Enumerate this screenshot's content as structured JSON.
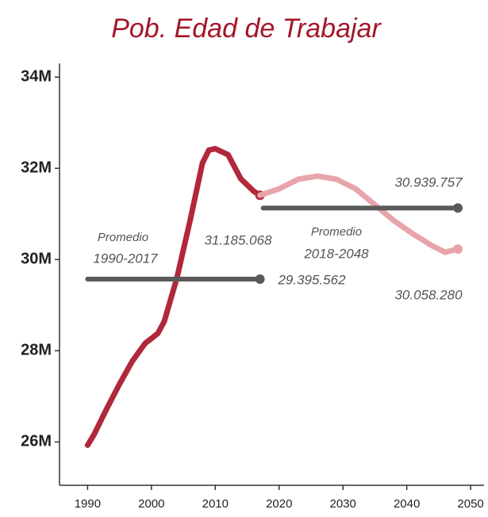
{
  "chart_data": {
    "type": "line",
    "title": "Pob. Edad de Trabajar",
    "xlim": [
      1985.6,
      2052.1
    ],
    "xticks": [
      1990,
      2000,
      2010,
      2020,
      2030,
      2040,
      2050
    ],
    "ylim": [
      25050000,
      34300000
    ],
    "yticks": [
      {
        "value": 26000000,
        "label": "26M"
      },
      {
        "value": 28000000,
        "label": "28M"
      },
      {
        "value": 30000000,
        "label": "30M"
      },
      {
        "value": 32000000,
        "label": "32M"
      },
      {
        "value": 34000000,
        "label": "34M"
      }
    ],
    "series": [
      {
        "color": "#b0283a",
        "x": [
          1990,
          1991,
          1993,
          1995,
          1997,
          1999,
          2001,
          2002,
          2004,
          2006,
          2008,
          2009,
          2010,
          2012,
          2014,
          2016,
          2017
        ],
        "values": [
          25930000,
          26160000,
          26730000,
          27270000,
          27770000,
          28160000,
          28380000,
          28640000,
          29600000,
          30820000,
          32120000,
          32400000,
          32430000,
          32300000,
          31770000,
          31500000,
          31410000
        ]
      },
      {
        "color": "#e8a4ab",
        "x": [
          2017,
          2020,
          2023,
          2026,
          2029,
          2032,
          2035,
          2038,
          2041,
          2044,
          2046,
          2048
        ],
        "values": [
          31410000,
          31550000,
          31760000,
          31830000,
          31760000,
          31550000,
          31200000,
          30850000,
          30560000,
          30300000,
          30160000,
          30230000
        ]
      },
      {
        "color": "#5a5a5a",
        "x": [
          1990,
          2017
        ],
        "values": [
          29570000,
          29570000
        ]
      },
      {
        "color": "#5a5a5a",
        "x": [
          2017.5,
          2048
        ],
        "values": [
          31130000,
          31130000
        ]
      }
    ],
    "annotations": [
      "Promedio",
      "1990-2017",
      "31.185.068",
      "29.395.562",
      "Promedio",
      "2018-2048",
      "30.939.757",
      "30.058.280"
    ]
  }
}
